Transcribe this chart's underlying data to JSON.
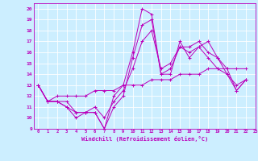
{
  "xlabel": "Windchill (Refroidissement éolien,°C)",
  "bg_color": "#cceeff",
  "grid_color": "#ffffff",
  "line_color": "#bb00bb",
  "xlim": [
    -0.5,
    23
  ],
  "ylim": [
    9,
    20.5
  ],
  "yticks": [
    9,
    10,
    11,
    12,
    13,
    14,
    15,
    16,
    17,
    18,
    19,
    20
  ],
  "xticks": [
    0,
    1,
    2,
    3,
    4,
    5,
    6,
    7,
    8,
    9,
    10,
    11,
    12,
    13,
    14,
    15,
    16,
    17,
    18,
    19,
    20,
    21,
    22,
    23
  ],
  "series": [
    {
      "x": [
        0,
        1,
        2,
        3,
        4,
        5,
        6,
        7,
        8,
        9,
        10,
        11,
        12,
        13,
        14,
        15,
        16,
        17,
        18,
        19,
        20,
        21,
        22
      ],
      "y": [
        13,
        11.5,
        11.5,
        11,
        10.5,
        10.5,
        10.5,
        9,
        12,
        13,
        16,
        20,
        19.5,
        14,
        14,
        17,
        15.5,
        16.5,
        17,
        15.5,
        14,
        12.5,
        13.5
      ]
    },
    {
      "x": [
        0,
        1,
        2,
        3,
        4,
        5,
        6,
        7,
        8,
        9,
        10,
        11,
        12,
        13,
        14,
        15,
        16,
        17,
        18,
        19,
        20,
        21,
        22
      ],
      "y": [
        13,
        11.5,
        11.5,
        11,
        10,
        10.5,
        10.5,
        9,
        11,
        12,
        15.5,
        18.5,
        19,
        14,
        14.5,
        16.5,
        16,
        16.5,
        15.5,
        14.5,
        14,
        13,
        13.5
      ]
    },
    {
      "x": [
        0,
        1,
        2,
        3,
        4,
        5,
        6,
        7,
        8,
        9,
        10,
        11,
        12,
        13,
        14,
        15,
        16,
        17,
        18,
        19,
        20,
        21,
        22
      ],
      "y": [
        13,
        11.5,
        11.5,
        11.5,
        10.5,
        10.5,
        11,
        10,
        11.5,
        12.5,
        14.5,
        17,
        18,
        14.5,
        15,
        16.5,
        16.5,
        17,
        16,
        15.5,
        14.5,
        12.5,
        13.5
      ]
    },
    {
      "x": [
        0,
        1,
        2,
        3,
        4,
        5,
        6,
        7,
        8,
        9,
        10,
        11,
        12,
        13,
        14,
        15,
        16,
        17,
        18,
        19,
        20,
        21,
        22
      ],
      "y": [
        13,
        11.5,
        12,
        12,
        12,
        12,
        12.5,
        12.5,
        12.5,
        13,
        13,
        13,
        13.5,
        13.5,
        13.5,
        14,
        14,
        14,
        14.5,
        14.5,
        14.5,
        14.5,
        14.5
      ]
    }
  ]
}
